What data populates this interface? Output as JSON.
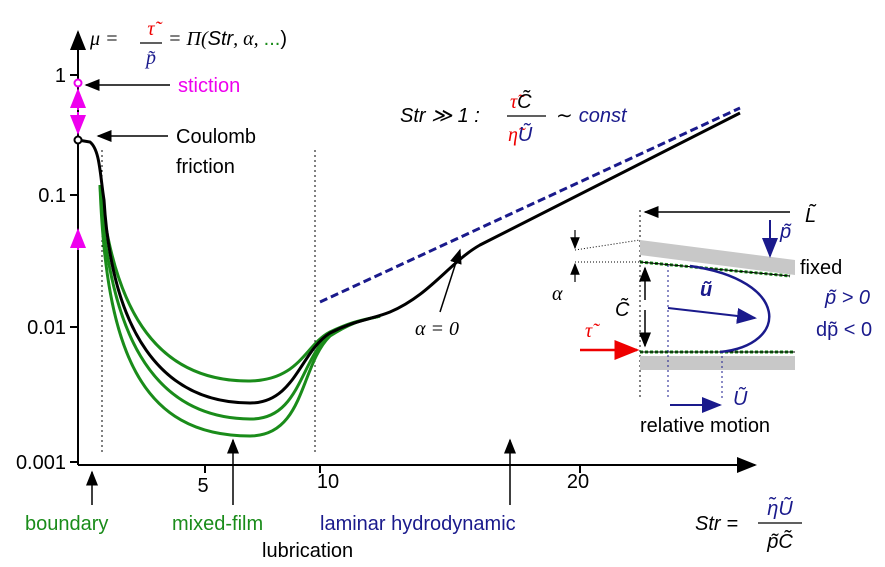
{
  "axes": {
    "y_label": {
      "mu": "μ =",
      "num": "τ̃",
      "den": "p̃",
      "pi": "= Π(",
      "str": "Str",
      "alpha": ", α, ",
      "dots": "...",
      "close": ")"
    },
    "y_ticks": [
      "1",
      "0.1",
      "0.01",
      "0.001"
    ],
    "x_ticks": [
      "5",
      "10",
      "20"
    ],
    "x_label": {
      "str": "Str",
      "eq": "=",
      "num": "η̃Ũ",
      "den": "p̃C̃"
    }
  },
  "annotations": {
    "stiction": "stiction",
    "coulomb": [
      "Coulomb",
      "friction"
    ],
    "asymptote": {
      "cond": "Str ≫ 1 :",
      "num_a": "τ̃",
      "num_b": "C̃",
      "den_a": "η̃",
      "den_b": "Ũ",
      "sim": "∼",
      "const": "const"
    },
    "alpha_zero": "α = 0"
  },
  "regimes": {
    "boundary": "boundary",
    "mixed": "mixed-film",
    "laminar": "laminar hydrodynamic",
    "lubrication": "lubrication"
  },
  "inset": {
    "L": "L̃",
    "p": "p̃",
    "fixed": "fixed",
    "p_pos": "p̃ > 0",
    "dp_neg": "dp̃ < 0",
    "alpha": "α",
    "C": "C̃",
    "u": "ũ",
    "tau": "τ̃",
    "U": "Ũ",
    "motion": "relative motion"
  }
}
